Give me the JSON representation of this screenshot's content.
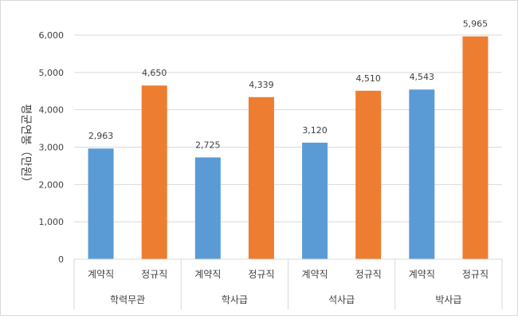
{
  "chart_data": {
    "type": "bar",
    "groups": [
      "학력무관",
      "학사급",
      "석사급",
      "박사급"
    ],
    "subcategories": [
      "계약직",
      "정규직"
    ],
    "values": [
      [
        2963,
        4650
      ],
      [
        2725,
        4339
      ],
      [
        3120,
        4510
      ],
      [
        4543,
        5965
      ]
    ],
    "value_labels": [
      [
        "2,963",
        "4,650"
      ],
      [
        "2,725",
        "4,339"
      ],
      [
        "3,120",
        "4,510"
      ],
      [
        "4,543",
        "5,965"
      ]
    ],
    "ylabel": "평균연봉（만원）",
    "ylim": [
      0,
      6000
    ],
    "yticks": [
      "0",
      "1,000",
      "2,000",
      "3,000",
      "4,000",
      "5,000",
      "6,000"
    ],
    "grid": true,
    "legend": "none",
    "colors": {
      "계약직": "#5B9BD5",
      "정규직": "#ED7D31"
    }
  }
}
